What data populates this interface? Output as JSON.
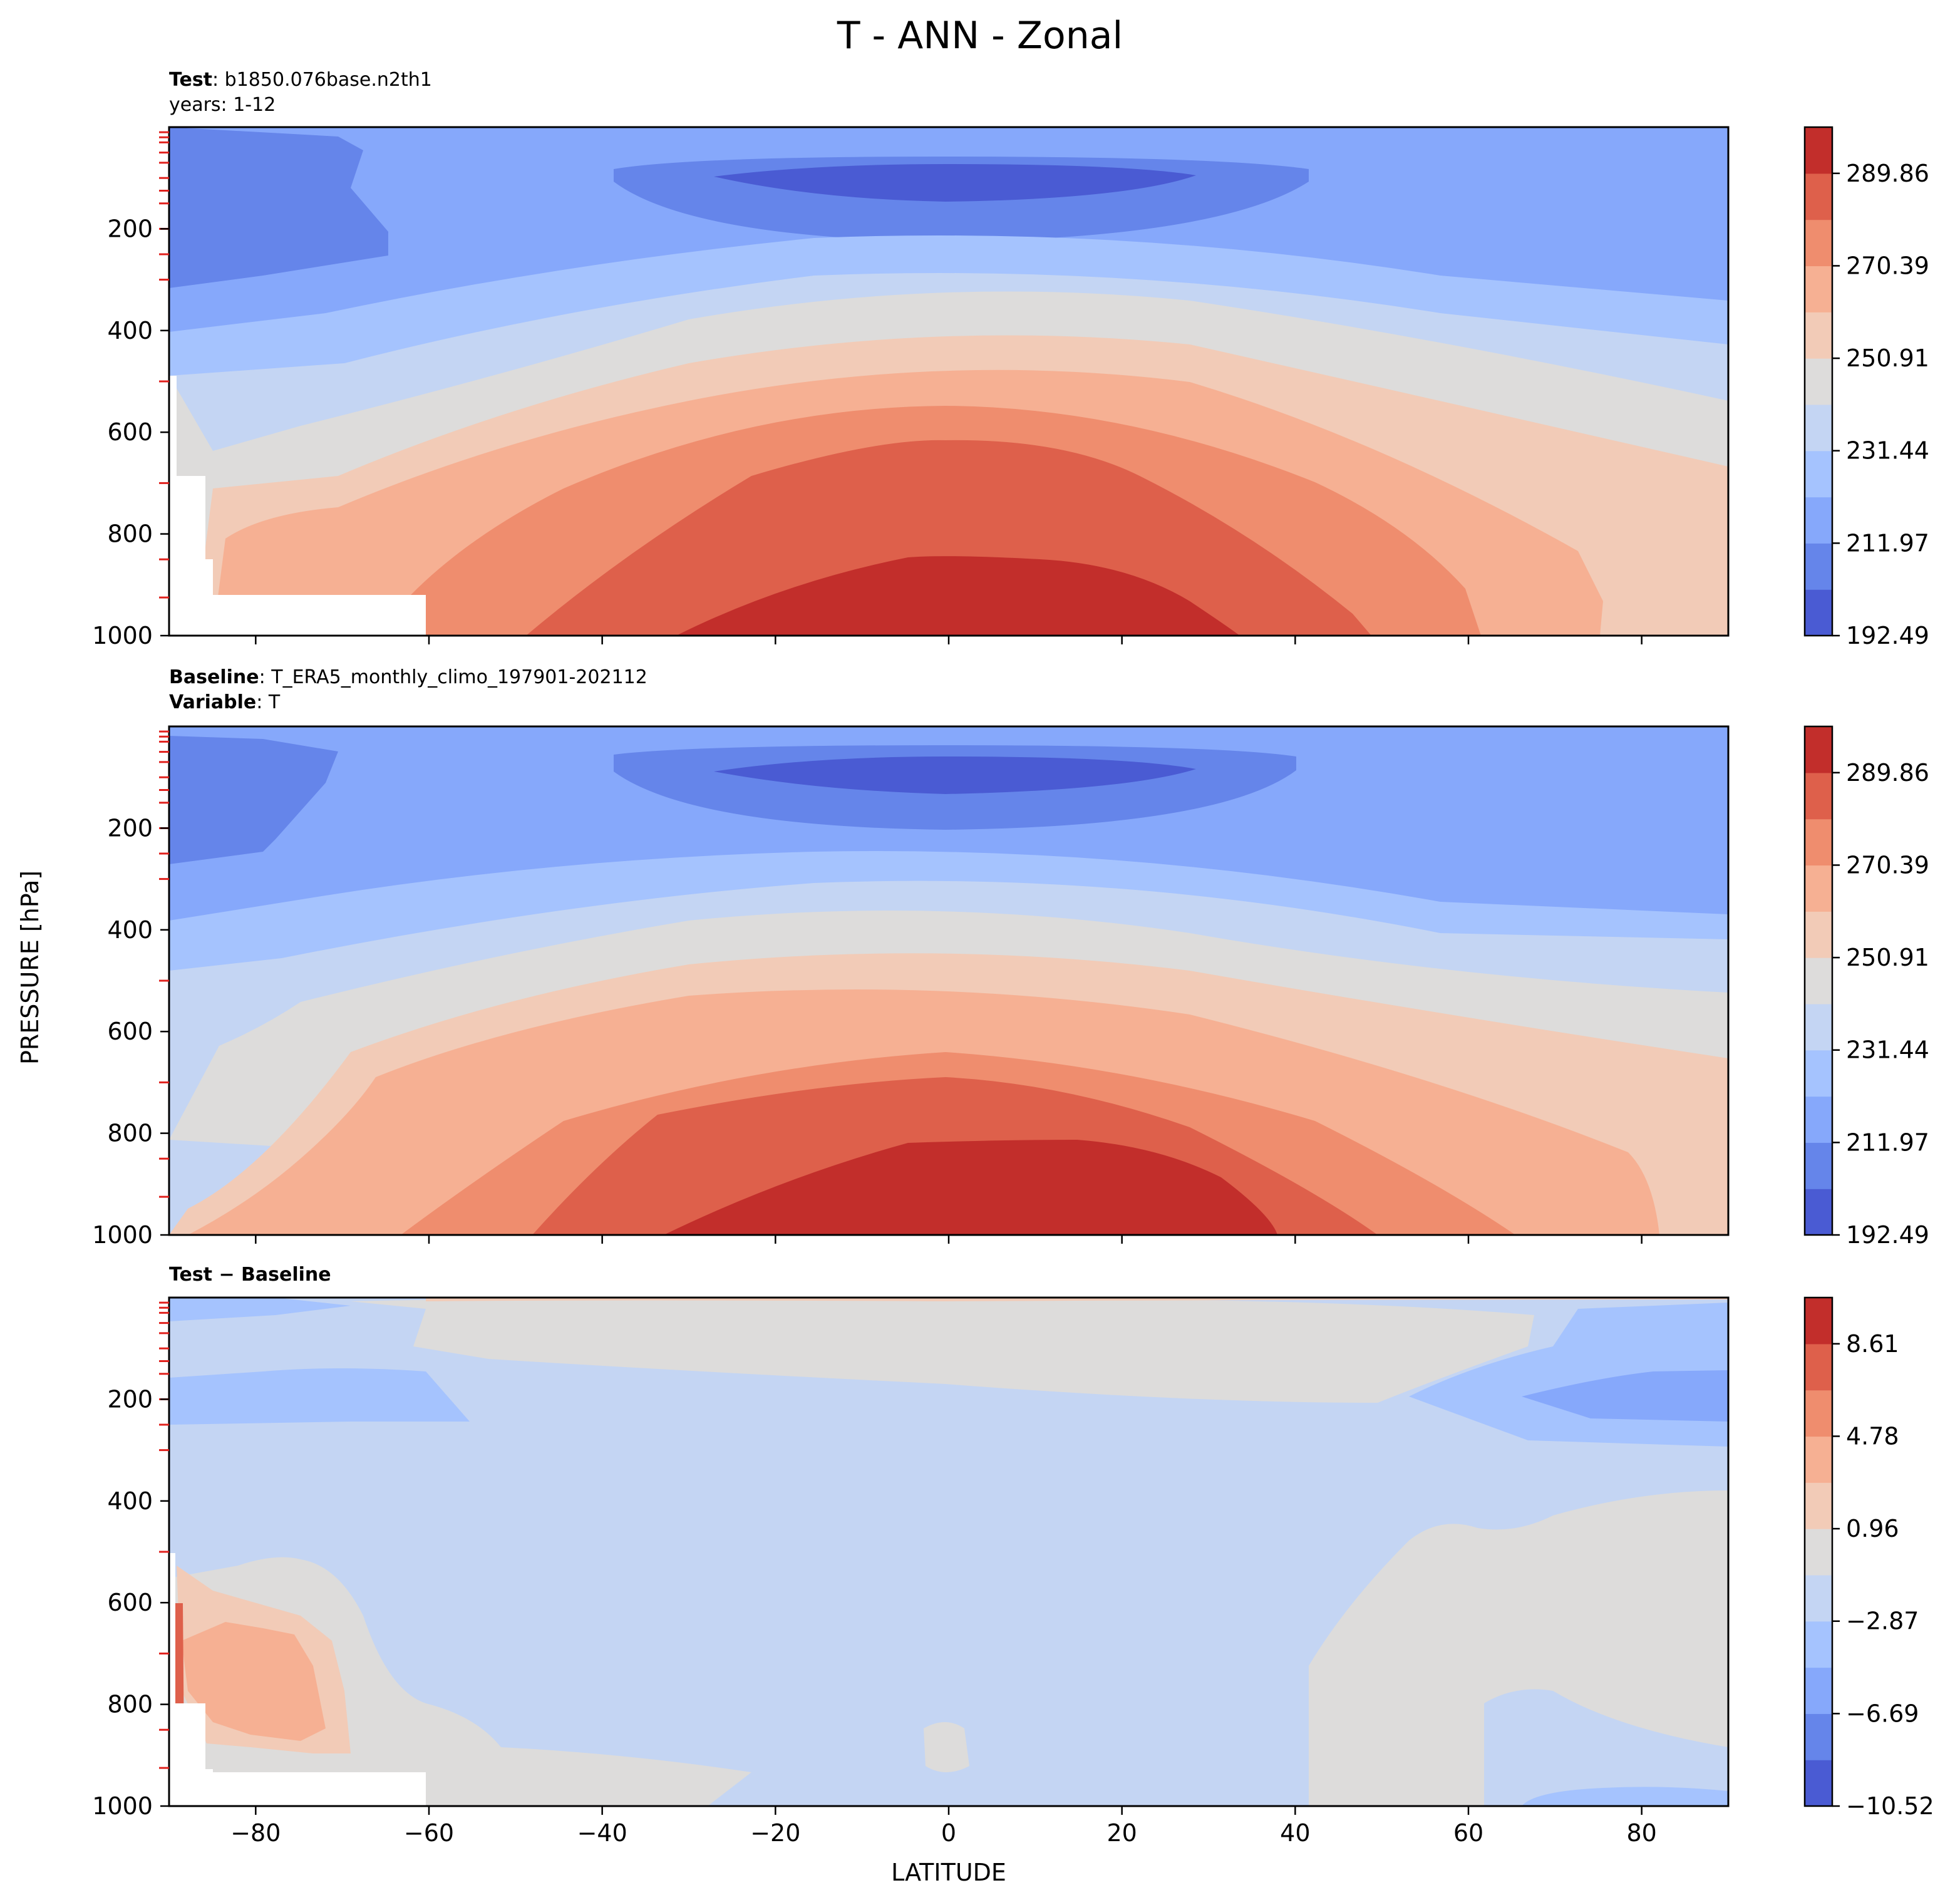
{
  "figure": {
    "title": "T - ANN - Zonal",
    "xlabel": "LATITUDE",
    "ylabel": "PRESSURE [hPa]"
  },
  "panels": {
    "test": {
      "title_bold": "Test",
      "title_text": ": b1850.076base.n2th1",
      "subtitle": "years: 1-12"
    },
    "baseline": {
      "title_bold": "Baseline",
      "title_text": ": T_ERA5_monthly_climo_197901-202112",
      "subtitle_bold": "Variable",
      "subtitle_text": ": T"
    },
    "diff": {
      "title_bold": "Test − Baseline"
    }
  },
  "colors": {
    "temperature_levels": [
      "#4a5bd3",
      "#6585ea",
      "#86a8fb",
      "#a5c3fe",
      "#c4d5f3",
      "#dddcdb",
      "#f2cbb7",
      "#f6b093",
      "#ef8d6e",
      "#de604b",
      "#c22e2b"
    ],
    "diff_levels": [
      "#4a5bd3",
      "#6585ea",
      "#86a8fb",
      "#a5c3fe",
      "#c4d5f3",
      "#dddcdb",
      "#f2cbb7",
      "#f6b093",
      "#ef8d6e",
      "#de604b",
      "#c22e2b"
    ]
  },
  "chart_data": [
    {
      "type": "heatmap",
      "name": "Test",
      "x_ticks": [
        -80,
        -60,
        -40,
        -20,
        0,
        20,
        40,
        60,
        80
      ],
      "x_tick_labels": [
        "−80",
        "−60",
        "−40",
        "−20",
        "0",
        "20",
        "40",
        "60",
        "80"
      ],
      "xlim": [
        -90,
        90
      ],
      "y_ticks": [
        200,
        400,
        600,
        800,
        1000
      ],
      "ylim": [
        1000,
        0
      ],
      "colorbar": {
        "range": [
          192.49,
          309.33
        ],
        "tick_labels": [
          "192.49",
          "211.97",
          "231.44",
          "250.91",
          "270.39",
          "289.86"
        ]
      },
      "contour_bands_approx": [
        {
          "level": "192.49-202.23",
          "region": "tropical tropopause, ~75-140 hPa, 25S-25N"
        },
        {
          "level": "202.23-211.97",
          "region": "polar stratosphere and tropical upper band"
        },
        {
          "level": "211.97-221.71",
          "region": "upper troposphere / lower stratosphere"
        },
        {
          "level": "270.39-280.12",
          "region": "lower troposphere tropics"
        },
        {
          "level": "289.86-299.60",
          "region": "near surface, 20S-30N, 850-1000 hPa"
        }
      ]
    },
    {
      "type": "heatmap",
      "name": "Baseline",
      "x_ticks": [
        -80,
        -60,
        -40,
        -20,
        0,
        20,
        40,
        60,
        80
      ],
      "x_tick_labels": [
        "−80",
        "−60",
        "−40",
        "−20",
        "0",
        "20",
        "40",
        "60",
        "80"
      ],
      "xlim": [
        -90,
        90
      ],
      "y_ticks": [
        200,
        400,
        600,
        800,
        1000
      ],
      "ylim": [
        1000,
        0
      ],
      "colorbar": {
        "range": [
          192.49,
          309.33
        ],
        "tick_labels": [
          "192.49",
          "211.97",
          "231.44",
          "250.91",
          "270.39",
          "289.86"
        ]
      }
    },
    {
      "type": "heatmap",
      "name": "Test − Baseline",
      "x_ticks": [
        -80,
        -60,
        -40,
        -20,
        0,
        20,
        40,
        60,
        80
      ],
      "x_tick_labels": [
        "−80",
        "−60",
        "−40",
        "−20",
        "0",
        "20",
        "40",
        "60",
        "80"
      ],
      "xlim": [
        -90,
        90
      ],
      "y_ticks": [
        200,
        400,
        600,
        800,
        1000
      ],
      "ylim": [
        1000,
        0
      ],
      "colorbar": {
        "range": [
          -10.52,
          10.52
        ],
        "tick_labels": [
          "−10.52",
          "−6.69",
          "−2.87",
          "0.96",
          "4.78",
          "8.61"
        ]
      },
      "contour_bands_approx": [
        {
          "level": "-2.87-(-0.96)",
          "region": "most of the domain (slightly negative)"
        },
        {
          "level": "-0.96-0.96",
          "region": "upper levels 50-150 hPa tropics, high-latitude lower troposphere"
        },
        {
          "level": "0.96-4.78",
          "region": "Antarctic lower troposphere 550-900 hPa, top levels"
        },
        {
          "level": "-6.69-(-2.87)",
          "region": "150-280 hPa southern high latitudes, northern polar 30-300 hPa"
        }
      ]
    }
  ]
}
